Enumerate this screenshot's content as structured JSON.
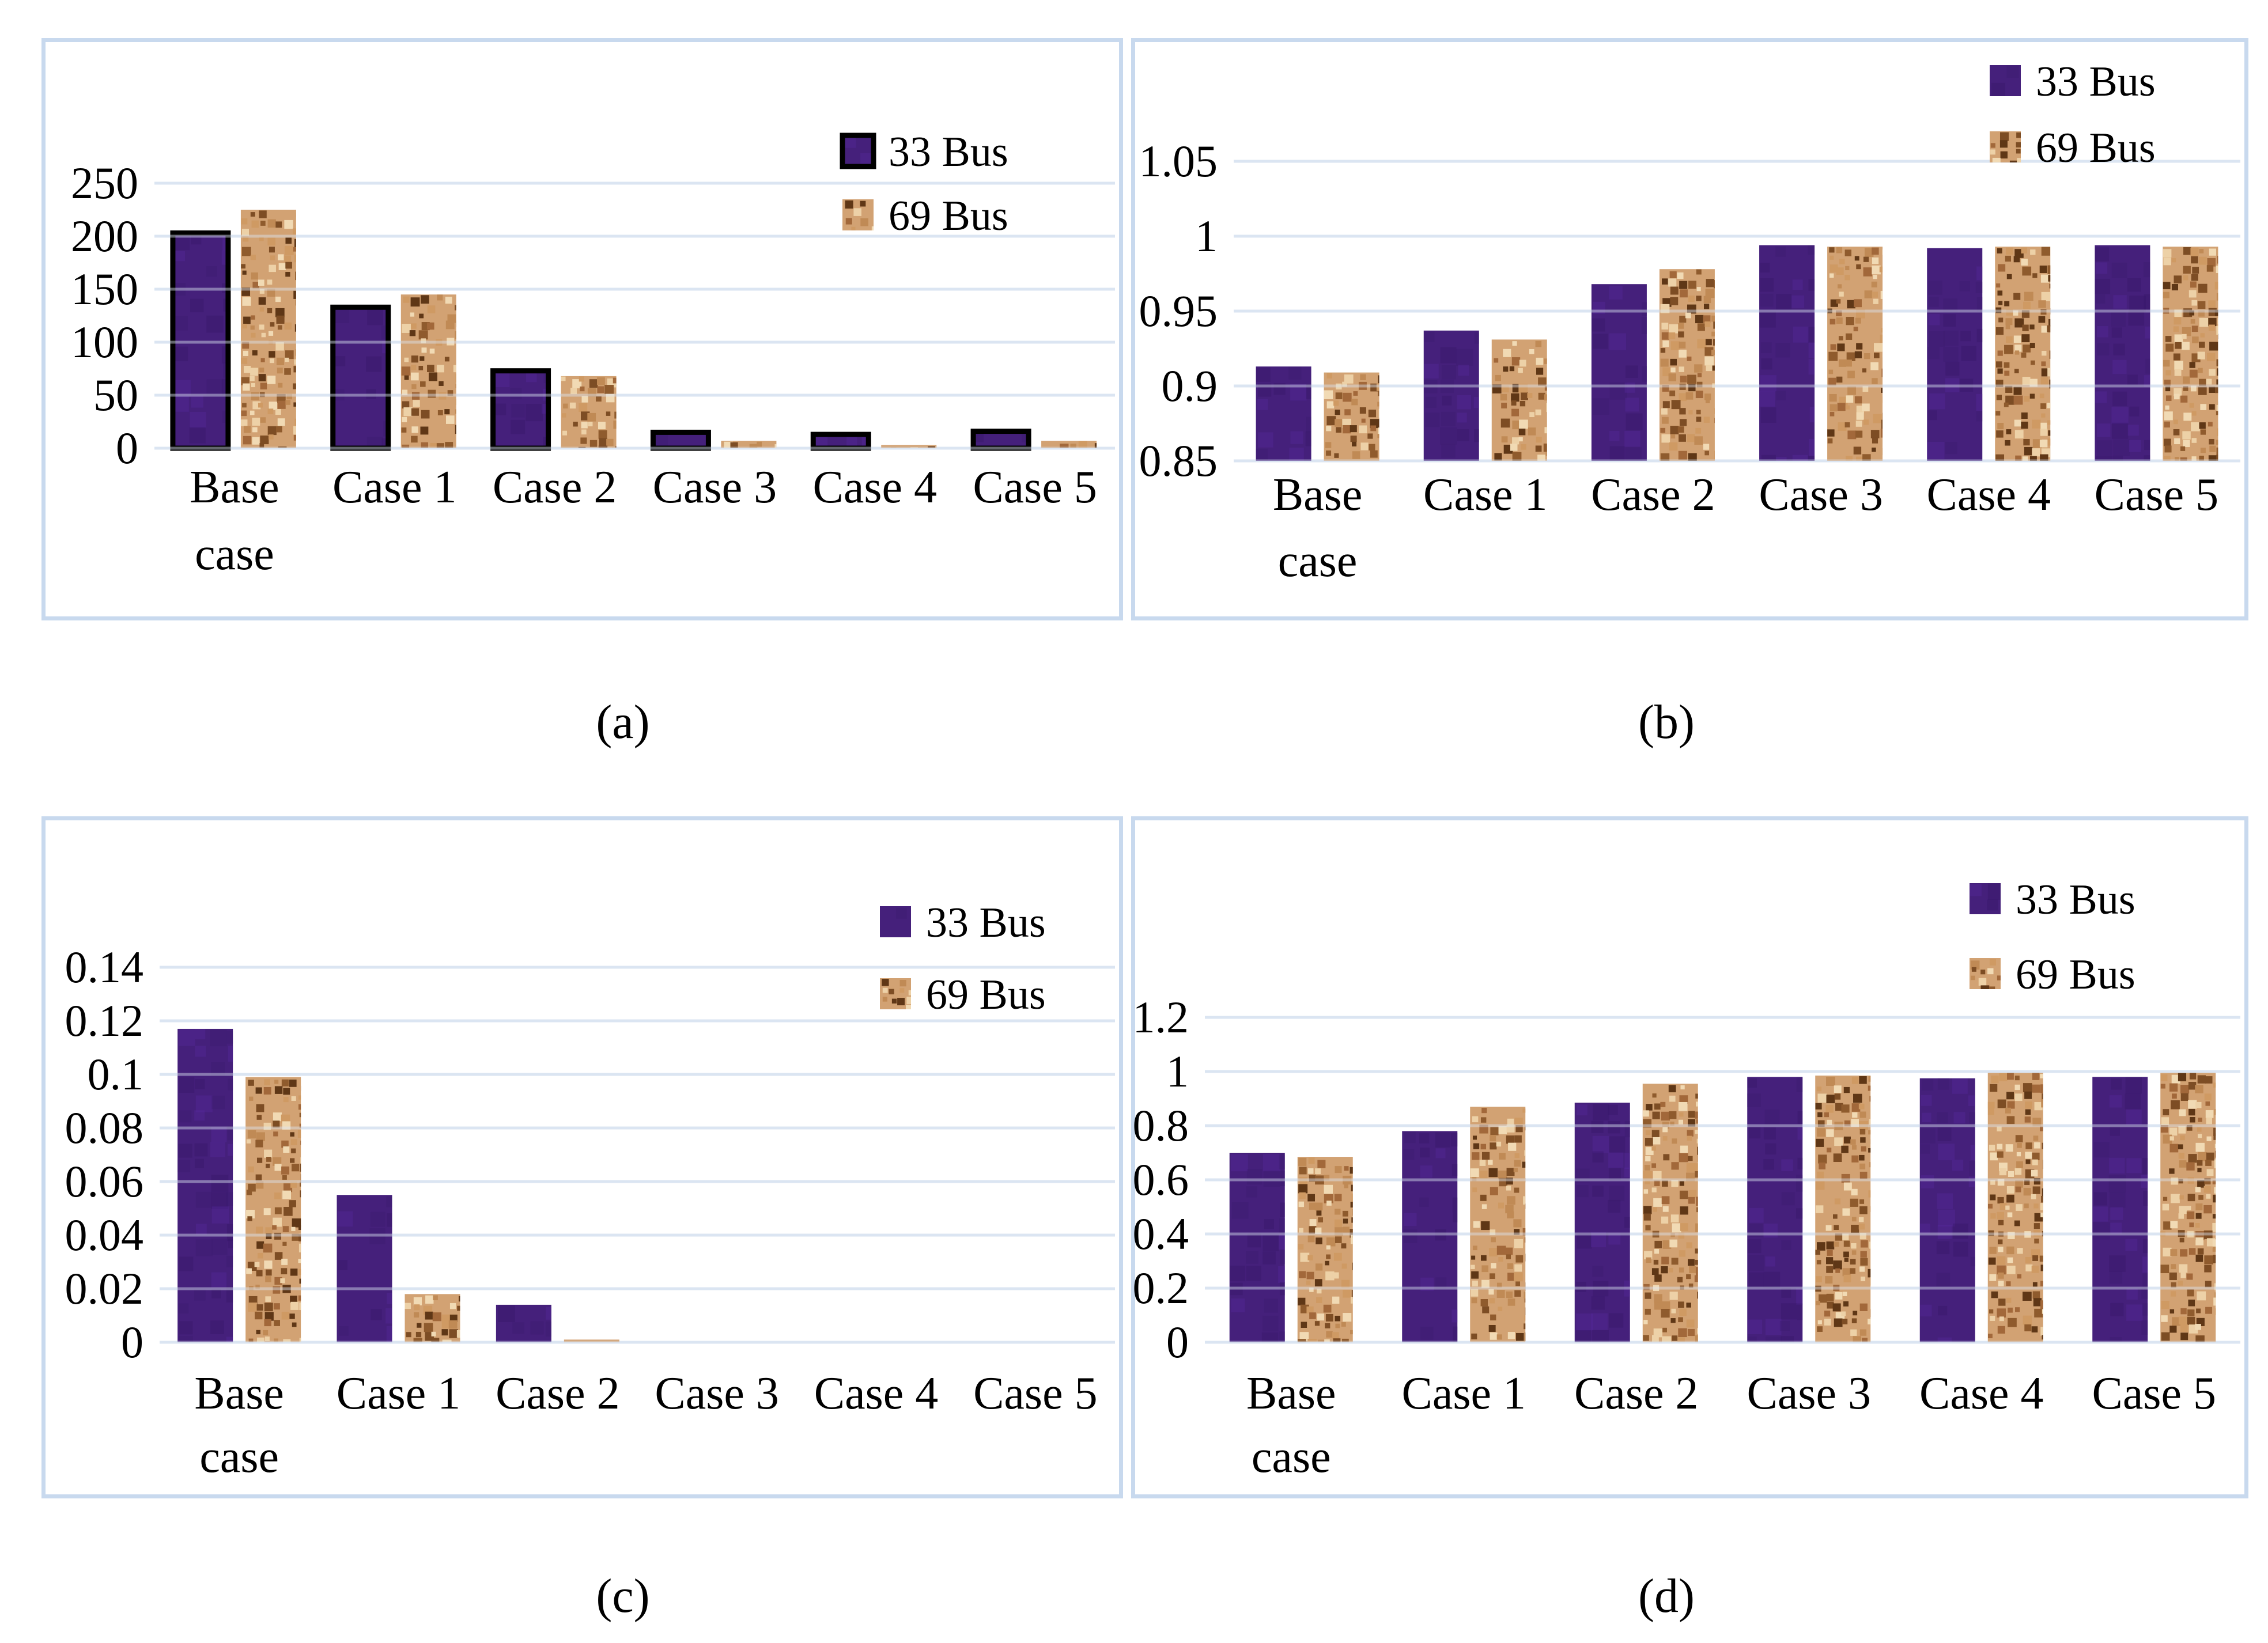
{
  "figure": {
    "description": "Four grouped bar charts comparing 33 Bus and 69 Bus systems for Base case and Cases 1-5",
    "legend_labels": [
      "33 Bus",
      "69 Bus"
    ],
    "colors": {
      "series_33_bus": "#45207b",
      "series_33_bus_outline": "#000000",
      "series_69_bus": "#d2a273",
      "gridline": "#dbe5f2",
      "panel_border": "#c8d9ee",
      "text": "#000000",
      "background": "#ffffff"
    }
  },
  "chart_data": [
    {
      "id": "a",
      "type": "bar",
      "caption": "(a)",
      "title": "",
      "xlabel": "",
      "ylabel": "",
      "categories": [
        "Base case",
        "Case 1",
        "Case 2",
        "Case 3",
        "Case 4",
        "Case 5"
      ],
      "series": [
        {
          "name": "33 Bus",
          "values": [
            203,
            133,
            73,
            15,
            13,
            16
          ]
        },
        {
          "name": "69 Bus",
          "values": [
            225,
            145,
            68,
            7,
            3,
            7
          ]
        }
      ],
      "ylim": [
        0,
        250
      ],
      "yticks": [
        0,
        50,
        100,
        150,
        200,
        250
      ],
      "grid": true,
      "bar_outline": true,
      "legend_position": "top-right"
    },
    {
      "id": "b",
      "type": "bar",
      "caption": "(b)",
      "title": "",
      "xlabel": "",
      "ylabel": "",
      "categories": [
        "Base case",
        "Case 1",
        "Case 2",
        "Case 3",
        "Case 4",
        "Case 5"
      ],
      "series": [
        {
          "name": "33 Bus",
          "values": [
            0.913,
            0.937,
            0.968,
            0.994,
            0.992,
            0.994
          ]
        },
        {
          "name": "69 Bus",
          "values": [
            0.909,
            0.931,
            0.978,
            0.993,
            0.993,
            0.993
          ]
        }
      ],
      "ylim": [
        0.85,
        1.05
      ],
      "yticks": [
        0.85,
        0.9,
        0.95,
        1,
        1.05
      ],
      "grid": true,
      "bar_outline": false,
      "legend_position": "top-right"
    },
    {
      "id": "c",
      "type": "bar",
      "caption": "(c)",
      "title": "",
      "xlabel": "",
      "ylabel": "",
      "categories": [
        "Base case",
        "Case 1",
        "Case 2",
        "Case 3",
        "Case 4",
        "Case 5"
      ],
      "series": [
        {
          "name": "33 Bus",
          "values": [
            0.117,
            0.055,
            0.014,
            0,
            0,
            0
          ]
        },
        {
          "name": "69 Bus",
          "values": [
            0.099,
            0.018,
            0.001,
            0,
            0,
            0
          ]
        }
      ],
      "ylim": [
        0,
        0.14
      ],
      "yticks": [
        0,
        0.02,
        0.04,
        0.06,
        0.08,
        0.1,
        0.12,
        0.14
      ],
      "grid": true,
      "bar_outline": false,
      "legend_position": "top-right"
    },
    {
      "id": "d",
      "type": "bar",
      "caption": "(d)",
      "title": "",
      "xlabel": "",
      "ylabel": "",
      "categories": [
        "Base case",
        "Case 1",
        "Case 2",
        "Case 3",
        "Case 4",
        "Case 5"
      ],
      "series": [
        {
          "name": "33 Bus",
          "values": [
            0.7,
            0.78,
            0.885,
            0.98,
            0.975,
            0.98
          ]
        },
        {
          "name": "69 Bus",
          "values": [
            0.685,
            0.87,
            0.955,
            0.985,
            0.995,
            0.995
          ]
        }
      ],
      "ylim": [
        0,
        1.2
      ],
      "yticks": [
        0,
        0.2,
        0.4,
        0.6,
        0.8,
        1,
        1.2
      ],
      "grid": true,
      "bar_outline": false,
      "legend_position": "top-right"
    }
  ]
}
